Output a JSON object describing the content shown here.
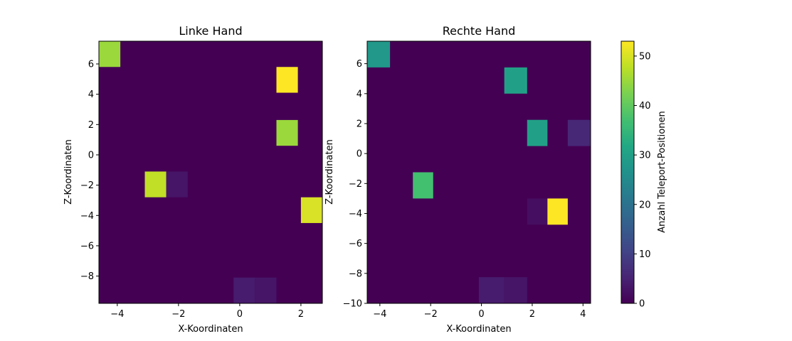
{
  "chart_data": [
    {
      "type": "heatmap",
      "title": "Linke Hand",
      "xlabel": "X-Koordinaten",
      "ylabel": "Z-Koordinaten",
      "xlim": [
        -4.6,
        2.7
      ],
      "ylim": [
        -9.8,
        7.5
      ],
      "xticks": [
        -4,
        -2,
        0,
        2
      ],
      "yticks": [
        -8,
        -6,
        -4,
        -2,
        0,
        2,
        4,
        6
      ],
      "cells": [
        {
          "x0": -4.6,
          "x1": -3.9,
          "y0": 5.8,
          "y1": 7.5,
          "value": 45
        },
        {
          "x0": 1.2,
          "x1": 1.9,
          "y0": 4.1,
          "y1": 5.8,
          "value": 53
        },
        {
          "x0": 1.2,
          "x1": 1.9,
          "y0": 0.6,
          "y1": 2.3,
          "value": 45
        },
        {
          "x0": -3.1,
          "x1": -2.4,
          "y0": -2.8,
          "y1": -1.1,
          "value": 48
        },
        {
          "x0": -2.4,
          "x1": -1.7,
          "y0": -2.8,
          "y1": -1.1,
          "value": 3
        },
        {
          "x0": 2.0,
          "x1": 2.7,
          "y0": -4.5,
          "y1": -2.8,
          "value": 50
        },
        {
          "x0": -0.2,
          "x1": 0.5,
          "y0": -9.8,
          "y1": -8.1,
          "value": 4
        },
        {
          "x0": 0.5,
          "x1": 1.2,
          "y0": -9.8,
          "y1": -8.1,
          "value": 3
        }
      ]
    },
    {
      "type": "heatmap",
      "title": "Rechte Hand",
      "xlabel": "X-Koordinaten",
      "ylabel": "Z-Koordinaten",
      "xlim": [
        -4.5,
        4.3
      ],
      "ylim": [
        -10,
        7.5
      ],
      "xticks": [
        -4,
        -2,
        0,
        2,
        4
      ],
      "yticks": [
        -10,
        -8,
        -6,
        -4,
        -2,
        0,
        2,
        4,
        6
      ],
      "cells": [
        {
          "x0": -4.5,
          "x1": -3.6,
          "y0": 5.75,
          "y1": 7.5,
          "value": 28
        },
        {
          "x0": 0.9,
          "x1": 1.8,
          "y0": 4.0,
          "y1": 5.75,
          "value": 30
        },
        {
          "x0": 1.8,
          "x1": 2.6,
          "y0": 0.5,
          "y1": 2.25,
          "value": 30
        },
        {
          "x0": 3.4,
          "x1": 4.3,
          "y0": 0.5,
          "y1": 2.25,
          "value": 6
        },
        {
          "x0": -2.7,
          "x1": -1.9,
          "y0": -3.0,
          "y1": -1.25,
          "value": 37
        },
        {
          "x0": 1.8,
          "x1": 2.6,
          "y0": -4.75,
          "y1": -3.0,
          "value": 2
        },
        {
          "x0": 2.6,
          "x1": 3.4,
          "y0": -4.75,
          "y1": -3.0,
          "value": 53
        },
        {
          "x0": -0.1,
          "x1": 0.9,
          "y0": -10.0,
          "y1": -8.25,
          "value": 4
        },
        {
          "x0": 0.9,
          "x1": 1.8,
          "y0": -10.0,
          "y1": -8.25,
          "value": 3
        }
      ]
    }
  ],
  "colorbar": {
    "label": "Anzahl Teleport-Positionen",
    "min": 0,
    "max": 53,
    "ticks": [
      0,
      10,
      20,
      30,
      40,
      50
    ],
    "colormap": "viridis"
  },
  "colors": {
    "background_cell": "#440154"
  }
}
